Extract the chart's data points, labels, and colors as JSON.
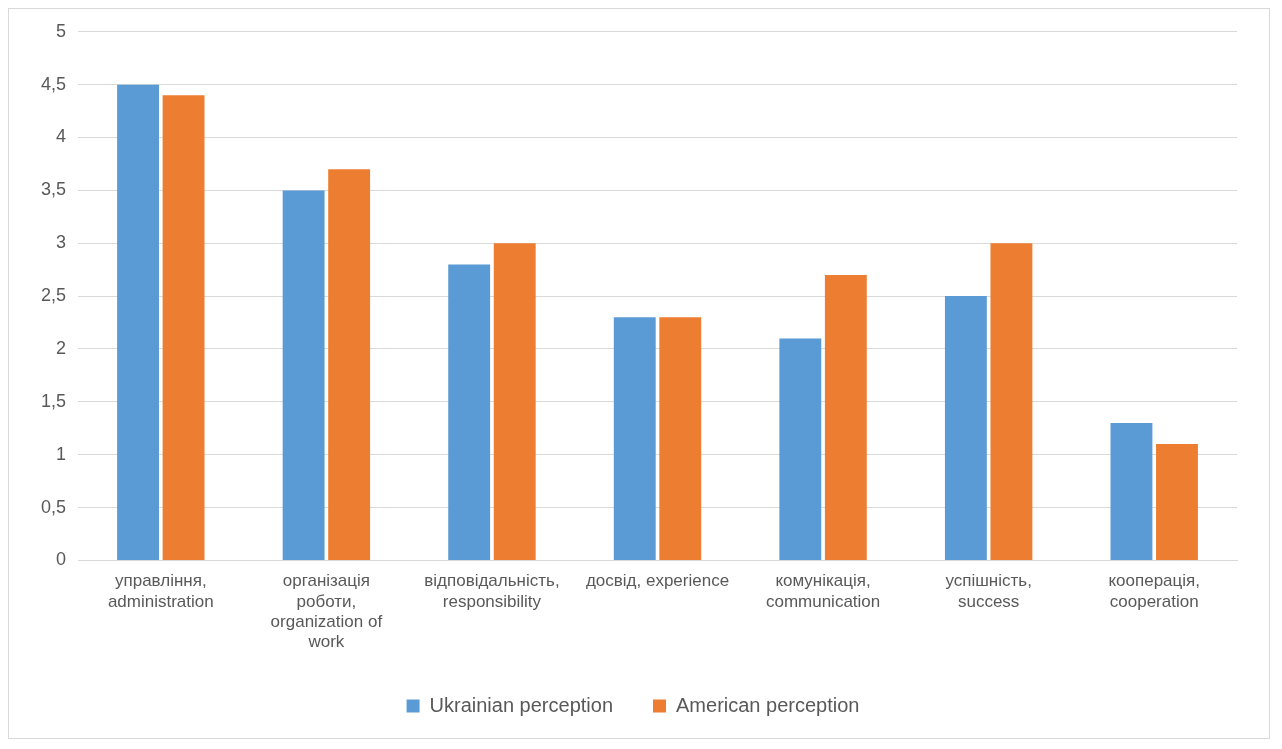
{
  "chart_data": {
    "type": "bar",
    "categories": [
      "управління, administration",
      "організація роботи, organization of work",
      "відповідальність, responsibility",
      "досвід, experience",
      "комунікація, communication",
      "успішність, success",
      "кооперація, cooperation"
    ],
    "series": [
      {
        "name": "Ukrainian perception",
        "color": "#5b9bd5",
        "values": [
          4.5,
          3.5,
          2.8,
          2.3,
          2.1,
          2.5,
          1.3
        ]
      },
      {
        "name": "American perception",
        "color": "#ed7d31",
        "values": [
          4.4,
          3.7,
          3.0,
          2.3,
          2.7,
          3.0,
          1.1
        ]
      }
    ],
    "ylim": [
      0,
      5
    ],
    "yticks": [
      0,
      {
        "value": 0.5,
        "label": "0,5"
      },
      1,
      {
        "value": 1.5,
        "label": "1,5"
      },
      2,
      {
        "value": 2.5,
        "label": "2,5"
      },
      3,
      {
        "value": 3.5,
        "label": "3,5"
      },
      4,
      {
        "value": 4.5,
        "label": "4,5"
      },
      5
    ],
    "grid": "y",
    "legend": "bottom"
  }
}
